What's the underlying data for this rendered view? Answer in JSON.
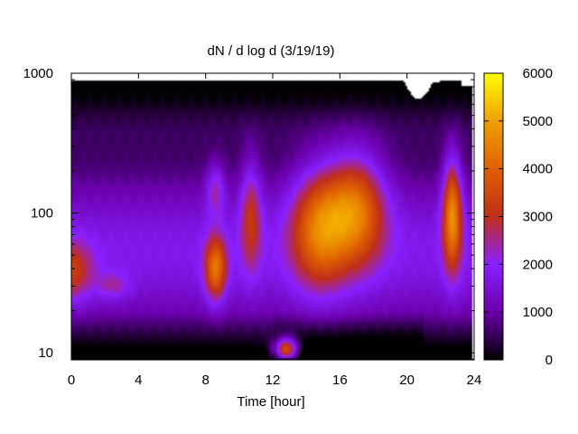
{
  "chart_data": {
    "type": "heatmap",
    "title": "dN / d log d (3/19/19)",
    "xlabel": "Time [hour]",
    "ylabel": "",
    "x_range": [
      0,
      24
    ],
    "x_ticks": [
      0,
      4,
      8,
      12,
      16,
      20,
      24
    ],
    "y_scale": "log",
    "y_range": [
      8.9,
      1000
    ],
    "y_ticks": [
      10,
      100,
      1000
    ],
    "colorbar": {
      "range": [
        0,
        6000
      ],
      "ticks": [
        0,
        1000,
        2000,
        3000,
        4000,
        5000,
        6000
      ],
      "palette": [
        "#000000",
        "#6a00aa",
        "#8a20ff",
        "#c02e1a",
        "#e06000",
        "#f0a000",
        "#ffff00"
      ]
    },
    "grid": false,
    "legend": "colorbar-right",
    "features": [
      {
        "t": 0.0,
        "d": 38,
        "sigma_t": 0.9,
        "sigma_logd": 0.15,
        "value": 1700
      },
      {
        "t": 2.5,
        "d": 30,
        "sigma_t": 0.7,
        "sigma_logd": 0.07,
        "value": 900
      },
      {
        "t": 8.6,
        "d": 40,
        "sigma_t": 0.45,
        "sigma_logd": 0.16,
        "value": 2700
      },
      {
        "t": 8.6,
        "d": 150,
        "sigma_t": 0.4,
        "sigma_logd": 0.14,
        "value": 1300
      },
      {
        "t": 10.7,
        "d": 100,
        "sigma_t": 0.45,
        "sigma_logd": 0.28,
        "value": 1700
      },
      {
        "t": 12.8,
        "d": 10.5,
        "sigma_t": 0.5,
        "sigma_logd": 0.06,
        "value": 4000
      },
      {
        "t": 14.8,
        "d": 80,
        "sigma_t": 1.2,
        "sigma_logd": 0.3,
        "value": 2800
      },
      {
        "t": 17.0,
        "d": 110,
        "sigma_t": 1.2,
        "sigma_logd": 0.28,
        "value": 2900
      },
      {
        "t": 22.7,
        "d": 100,
        "sigma_t": 0.4,
        "sigma_logd": 0.28,
        "value": 3300
      }
    ]
  }
}
